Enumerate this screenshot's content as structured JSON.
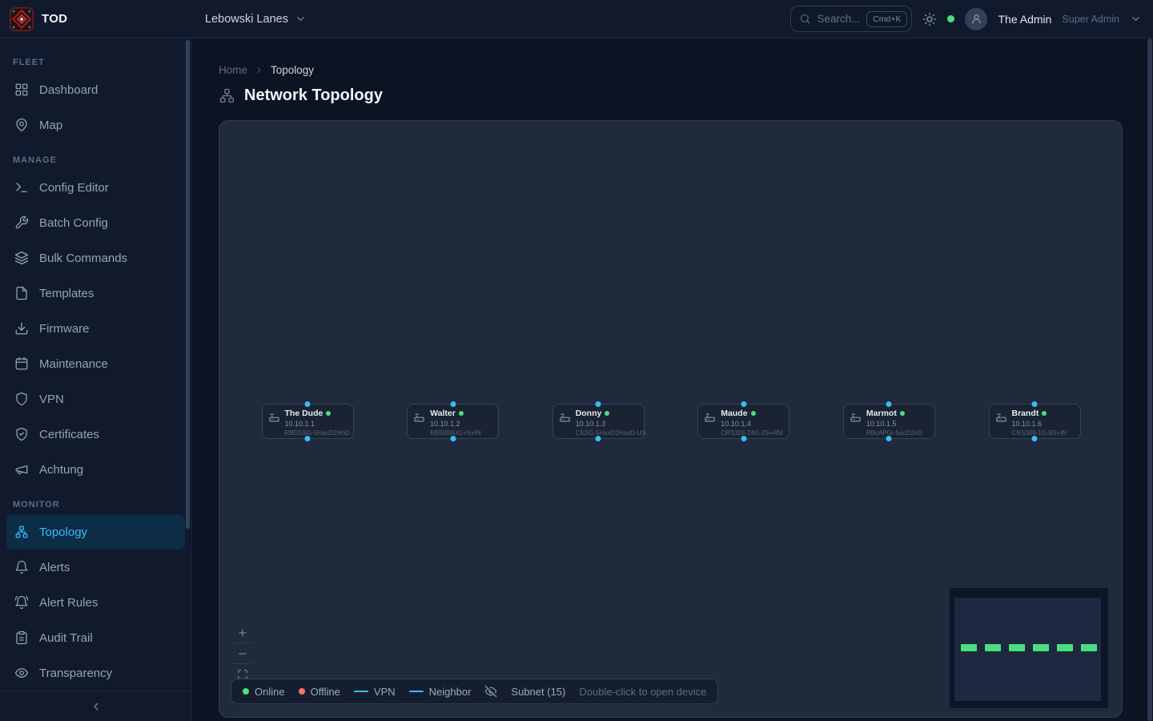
{
  "brand": {
    "name": "TOD",
    "logo_icon": "rug-logo-icon"
  },
  "topbar": {
    "org_name": "Lebowski Lanes",
    "search": {
      "placeholder": "Search...",
      "shortcut": "Cmd+K"
    },
    "user": {
      "name": "The Admin",
      "role": "Super Admin"
    }
  },
  "sidebar": {
    "sections": [
      {
        "label": "FLEET",
        "items": [
          {
            "label": "Dashboard",
            "icon": "dashboard-icon"
          },
          {
            "label": "Map",
            "icon": "map-pin-icon"
          }
        ]
      },
      {
        "label": "MANAGE",
        "items": [
          {
            "label": "Config Editor",
            "icon": "terminal-icon"
          },
          {
            "label": "Batch Config",
            "icon": "wrench-icon"
          },
          {
            "label": "Bulk Commands",
            "icon": "layers-icon"
          },
          {
            "label": "Templates",
            "icon": "file-icon"
          },
          {
            "label": "Firmware",
            "icon": "download-icon"
          },
          {
            "label": "Maintenance",
            "icon": "calendar-icon"
          },
          {
            "label": "VPN",
            "icon": "shield-icon"
          },
          {
            "label": "Certificates",
            "icon": "shield-check-icon"
          },
          {
            "label": "Achtung",
            "icon": "megaphone-icon"
          }
        ]
      },
      {
        "label": "MONITOR",
        "items": [
          {
            "label": "Topology",
            "icon": "topology-icon",
            "active": true
          },
          {
            "label": "Alerts",
            "icon": "bell-icon"
          },
          {
            "label": "Alert Rules",
            "icon": "bell-ring-icon"
          },
          {
            "label": "Audit Trail",
            "icon": "clipboard-icon"
          },
          {
            "label": "Transparency",
            "icon": "eye-icon"
          }
        ]
      }
    ]
  },
  "breadcrumb": {
    "items": [
      "Home",
      "Topology"
    ]
  },
  "page": {
    "title": "Network Topology"
  },
  "canvas": {
    "devices": [
      {
        "name": "The Dude",
        "ip": "10.10.1.1",
        "model": "RBD53iG-5HacD2HnD",
        "status": "online"
      },
      {
        "name": "Walter",
        "ip": "10.10.1.2",
        "model": "RB5009UG+S+IN",
        "status": "online"
      },
      {
        "name": "Donny",
        "ip": "10.10.1.3",
        "model": "C52iG-5HaxD2HaxD-US",
        "status": "online"
      },
      {
        "name": "Maude",
        "ip": "10.10.1.4",
        "model": "CRS326-24G-2S+RM",
        "status": "online"
      },
      {
        "name": "Marmot",
        "ip": "10.10.1.5",
        "model": "RBcAPGi-5acD2nD",
        "status": "online"
      },
      {
        "name": "Brandt",
        "ip": "10.10.1.6",
        "model": "CRS309-1G-8S+IN",
        "status": "online"
      }
    ],
    "legend": {
      "online_label": "Online",
      "offline_label": "Offline",
      "vpn_label": "VPN",
      "neighbor_label": "Neighbor",
      "subnet_label": "Subnet (15)",
      "hint": "Double-click to open device"
    }
  },
  "colors": {
    "accent": "#38bdf8",
    "online": "#4ade80",
    "offline": "#f87171",
    "link": "#38bdf8",
    "sidebar_bg": "#111a2d",
    "canvas_bg": "#1f2a3c"
  }
}
